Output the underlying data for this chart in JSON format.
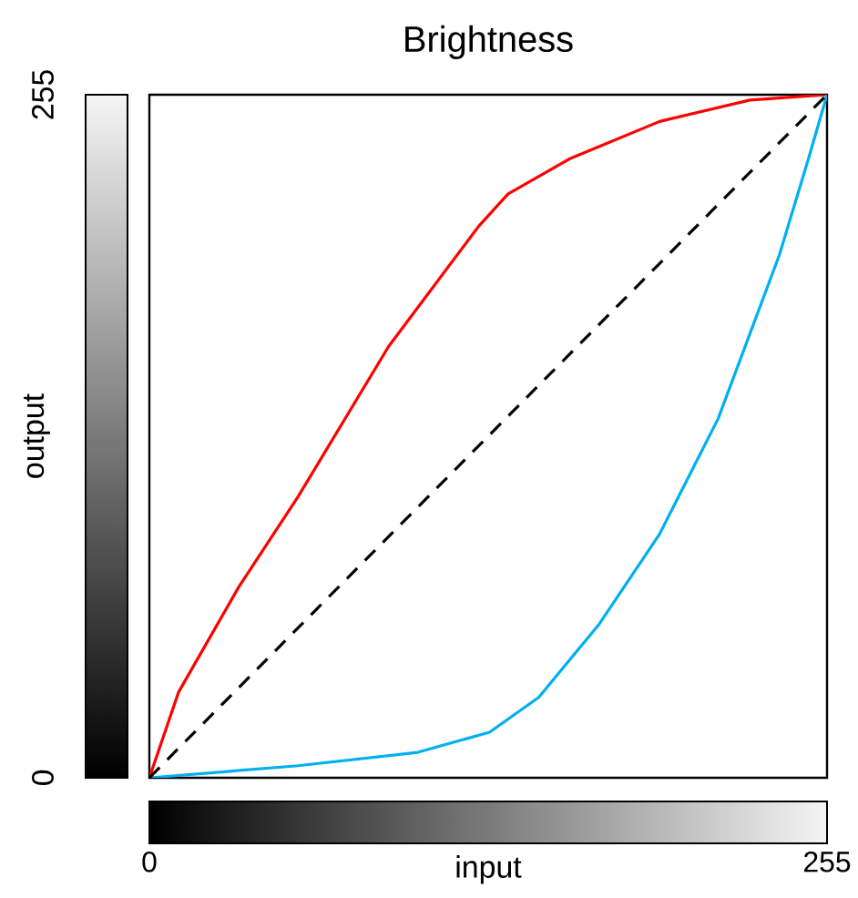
{
  "chart_data": {
    "type": "line",
    "title": "Brightness",
    "xlabel": "input",
    "ylabel": "output",
    "xlim": [
      0,
      255
    ],
    "ylim": [
      0,
      255
    ],
    "xticks": [
      0,
      255
    ],
    "yticks": [
      0,
      255
    ],
    "series": [
      {
        "color": "#ff0000",
        "x": [
          0,
          11,
          33.5,
          56,
          90,
          124,
          135,
          158,
          192,
          226,
          255
        ],
        "values": [
          0,
          32,
          71,
          105,
          161,
          206,
          218,
          231,
          245,
          253,
          255
        ]
      },
      {
        "color": "#00b0f0",
        "x": [
          0,
          56,
          101,
          128,
          146.5,
          169,
          192,
          214,
          237,
          248,
          255
        ],
        "values": [
          0,
          4.5,
          9.5,
          17,
          30,
          57,
          91,
          134,
          195,
          231,
          255
        ]
      },
      {
        "color": "#000000",
        "line_style": "dashed",
        "x": [
          0,
          255
        ],
        "values": [
          0,
          255
        ]
      }
    ]
  }
}
